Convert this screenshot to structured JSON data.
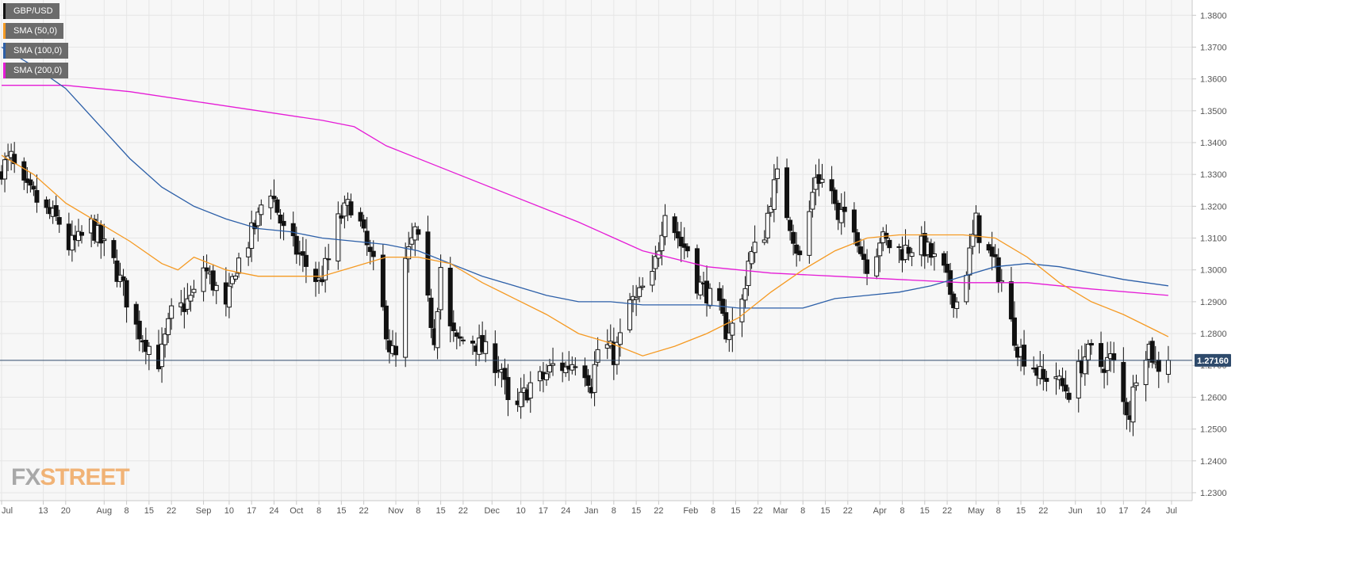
{
  "legend": [
    {
      "label": "GBP/USD",
      "color": "#111111"
    },
    {
      "label": "SMA (50,0)",
      "color": "#f59a23"
    },
    {
      "label": "SMA (100,0)",
      "color": "#2c5fa8"
    },
    {
      "label": "SMA (200,0)",
      "color": "#e51bd6"
    }
  ],
  "logo": {
    "part1": "FX",
    "part2": "STREET"
  },
  "colors": {
    "background": "#f7f7f7",
    "grid": "#e6e6e6",
    "candle_up": "#ffffff",
    "candle_down": "#111111",
    "price_line": "#2e4a6b",
    "price_badge": "#2e4a6b"
  },
  "chart_data": {
    "type": "candlestick",
    "instrument": "GBP/USD",
    "current_price": 1.2716,
    "current_price_label": "1.27160",
    "y_ticks": [
      1.38,
      1.37,
      1.36,
      1.35,
      1.34,
      1.33,
      1.32,
      1.31,
      1.3,
      1.29,
      1.28,
      1.27,
      1.26,
      1.25,
      1.24,
      1.23
    ],
    "y_tick_labels": [
      "1.3800",
      "1.3700",
      "1.3600",
      "1.3500",
      "1.3400",
      "1.3300",
      "1.3200",
      "1.3100",
      "1.3000",
      "1.2900",
      "1.2800",
      "1.2700",
      "1.2600",
      "1.2500",
      "1.2400",
      "1.2300"
    ],
    "ylim": [
      1.2275,
      1.3848
    ],
    "x_labels": [
      "Jul",
      "13",
      "20",
      "Aug",
      "8",
      "15",
      "22",
      "Sep",
      "10",
      "17",
      "24",
      "Oct",
      "8",
      "15",
      "22",
      "Nov",
      "8",
      "15",
      "22",
      "Dec",
      "10",
      "17",
      "24",
      "Jan",
      "8",
      "15",
      "22",
      "Feb",
      "8",
      "15",
      "22",
      "Mar",
      "8",
      "15",
      "22",
      "Apr",
      "8",
      "15",
      "22",
      "May",
      "8",
      "15",
      "22",
      "Jun",
      "10",
      "17",
      "24",
      "Jul"
    ],
    "x_label_days": [
      0,
      13,
      20,
      32,
      39,
      46,
      53,
      63,
      71,
      78,
      85,
      92,
      99,
      106,
      113,
      123,
      130,
      137,
      144,
      153,
      162,
      169,
      176,
      184,
      191,
      198,
      205,
      215,
      222,
      229,
      236,
      243,
      250,
      257,
      264,
      274,
      281,
      288,
      295,
      304,
      311,
      318,
      325,
      335,
      343,
      350,
      357,
      365
    ],
    "day_range": [
      0,
      366
    ],
    "keypoints": [
      [
        0,
        1.332
      ],
      [
        3,
        1.335
      ],
      [
        6,
        1.326
      ],
      [
        10,
        1.323
      ],
      [
        14,
        1.318
      ],
      [
        18,
        1.315
      ],
      [
        20,
        1.307
      ],
      [
        24,
        1.309
      ],
      [
        28,
        1.314
      ],
      [
        32,
        1.307
      ],
      [
        35,
        1.302
      ],
      [
        38,
        1.294
      ],
      [
        42,
        1.282
      ],
      [
        46,
        1.276
      ],
      [
        48,
        1.269
      ],
      [
        50,
        1.274
      ],
      [
        53,
        1.286
      ],
      [
        56,
        1.288
      ],
      [
        60,
        1.292
      ],
      [
        63,
        1.301
      ],
      [
        67,
        1.294
      ],
      [
        70,
        1.287
      ],
      [
        73,
        1.301
      ],
      [
        77,
        1.309
      ],
      [
        80,
        1.316
      ],
      [
        83,
        1.329
      ],
      [
        85,
        1.322
      ],
      [
        88,
        1.312
      ],
      [
        92,
        1.306
      ],
      [
        96,
        1.3
      ],
      [
        99,
        1.296
      ],
      [
        102,
        1.303
      ],
      [
        104,
        1.313
      ],
      [
        106,
        1.317
      ],
      [
        110,
        1.322
      ],
      [
        113,
        1.31
      ],
      [
        116,
        1.301
      ],
      [
        119,
        1.287
      ],
      [
        121,
        1.276
      ],
      [
        123,
        1.272
      ],
      [
        125,
        1.298
      ],
      [
        127,
        1.305
      ],
      [
        129,
        1.312
      ],
      [
        131,
        1.304
      ],
      [
        133,
        1.289
      ],
      [
        135,
        1.279
      ],
      [
        137,
        1.301
      ],
      [
        139,
        1.283
      ],
      [
        142,
        1.277
      ],
      [
        146,
        1.279
      ],
      [
        150,
        1.275
      ],
      [
        153,
        1.272
      ],
      [
        156,
        1.269
      ],
      [
        159,
        1.251
      ],
      [
        162,
        1.259
      ],
      [
        165,
        1.264
      ],
      [
        169,
        1.266
      ],
      [
        173,
        1.271
      ],
      [
        176,
        1.269
      ],
      [
        179,
        1.272
      ],
      [
        182,
        1.269
      ],
      [
        184,
        1.264
      ],
      [
        186,
        1.275
      ],
      [
        188,
        1.277
      ],
      [
        191,
        1.273
      ],
      [
        194,
        1.281
      ],
      [
        196,
        1.29
      ],
      [
        198,
        1.29
      ],
      [
        200,
        1.294
      ],
      [
        203,
        1.297
      ],
      [
        205,
        1.308
      ],
      [
        207,
        1.32
      ],
      [
        210,
        1.313
      ],
      [
        212,
        1.308
      ],
      [
        215,
        1.306
      ],
      [
        217,
        1.296
      ],
      [
        220,
        1.293
      ],
      [
        222,
        1.289
      ],
      [
        224,
        1.287
      ],
      [
        226,
        1.281
      ],
      [
        229,
        1.283
      ],
      [
        231,
        1.29
      ],
      [
        233,
        1.303
      ],
      [
        236,
        1.308
      ],
      [
        238,
        1.312
      ],
      [
        240,
        1.323
      ],
      [
        242,
        1.329
      ],
      [
        244,
        1.321
      ],
      [
        246,
        1.315
      ],
      [
        248,
        1.307
      ],
      [
        250,
        1.3
      ],
      [
        252,
        1.318
      ],
      [
        254,
        1.33
      ],
      [
        256,
        1.328
      ],
      [
        259,
        1.325
      ],
      [
        261,
        1.314
      ],
      [
        264,
        1.32
      ],
      [
        266,
        1.315
      ],
      [
        268,
        1.306
      ],
      [
        271,
        1.3
      ],
      [
        274,
        1.31
      ],
      [
        278,
        1.307
      ],
      [
        281,
        1.306
      ],
      [
        285,
        1.308
      ],
      [
        288,
        1.307
      ],
      [
        291,
        1.303
      ],
      [
        294,
        1.299
      ],
      [
        296,
        1.293
      ],
      [
        298,
        1.29
      ],
      [
        300,
        1.296
      ],
      [
        302,
        1.305
      ],
      [
        304,
        1.315
      ],
      [
        306,
        1.308
      ],
      [
        308,
        1.305
      ],
      [
        311,
        1.299
      ],
      [
        313,
        1.294
      ],
      [
        315,
        1.283
      ],
      [
        317,
        1.276
      ],
      [
        319,
        1.273
      ],
      [
        322,
        1.27
      ],
      [
        325,
        1.265
      ],
      [
        328,
        1.27
      ],
      [
        330,
        1.264
      ],
      [
        333,
        1.262
      ],
      [
        335,
        1.266
      ],
      [
        338,
        1.273
      ],
      [
        340,
        1.274
      ],
      [
        343,
        1.27
      ],
      [
        346,
        1.272
      ],
      [
        348,
        1.268
      ],
      [
        350,
        1.258
      ],
      [
        352,
        1.255
      ],
      [
        354,
        1.268
      ],
      [
        356,
        1.274
      ],
      [
        358,
        1.276
      ],
      [
        360,
        1.27
      ],
      [
        362,
        1.27
      ],
      [
        364,
        1.2716
      ]
    ],
    "sma50": [
      [
        0,
        1.336
      ],
      [
        10,
        1.33
      ],
      [
        20,
        1.321
      ],
      [
        30,
        1.315
      ],
      [
        40,
        1.309
      ],
      [
        50,
        1.302
      ],
      [
        55,
        1.3
      ],
      [
        60,
        1.304
      ],
      [
        70,
        1.3
      ],
      [
        80,
        1.298
      ],
      [
        90,
        1.298
      ],
      [
        100,
        1.298
      ],
      [
        110,
        1.301
      ],
      [
        120,
        1.304
      ],
      [
        130,
        1.304
      ],
      [
        140,
        1.302
      ],
      [
        150,
        1.296
      ],
      [
        160,
        1.291
      ],
      [
        170,
        1.286
      ],
      [
        180,
        1.28
      ],
      [
        190,
        1.277
      ],
      [
        200,
        1.273
      ],
      [
        210,
        1.276
      ],
      [
        220,
        1.28
      ],
      [
        230,
        1.285
      ],
      [
        240,
        1.293
      ],
      [
        250,
        1.3
      ],
      [
        260,
        1.306
      ],
      [
        270,
        1.31
      ],
      [
        280,
        1.311
      ],
      [
        290,
        1.311
      ],
      [
        300,
        1.311
      ],
      [
        310,
        1.31
      ],
      [
        320,
        1.304
      ],
      [
        330,
        1.296
      ],
      [
        340,
        1.29
      ],
      [
        350,
        1.286
      ],
      [
        360,
        1.281
      ],
      [
        364,
        1.279
      ]
    ],
    "sma100": [
      [
        0,
        1.37
      ],
      [
        10,
        1.364
      ],
      [
        20,
        1.357
      ],
      [
        30,
        1.346
      ],
      [
        40,
        1.335
      ],
      [
        50,
        1.326
      ],
      [
        60,
        1.32
      ],
      [
        70,
        1.316
      ],
      [
        80,
        1.313
      ],
      [
        90,
        1.312
      ],
      [
        100,
        1.31
      ],
      [
        110,
        1.309
      ],
      [
        120,
        1.308
      ],
      [
        130,
        1.306
      ],
      [
        140,
        1.302
      ],
      [
        150,
        1.298
      ],
      [
        160,
        1.295
      ],
      [
        170,
        1.292
      ],
      [
        180,
        1.29
      ],
      [
        190,
        1.29
      ],
      [
        200,
        1.289
      ],
      [
        210,
        1.289
      ],
      [
        220,
        1.289
      ],
      [
        230,
        1.288
      ],
      [
        240,
        1.288
      ],
      [
        250,
        1.288
      ],
      [
        260,
        1.291
      ],
      [
        270,
        1.292
      ],
      [
        280,
        1.293
      ],
      [
        290,
        1.295
      ],
      [
        300,
        1.298
      ],
      [
        310,
        1.301
      ],
      [
        320,
        1.302
      ],
      [
        330,
        1.301
      ],
      [
        340,
        1.299
      ],
      [
        350,
        1.297
      ],
      [
        364,
        1.295
      ]
    ],
    "sma200": [
      [
        0,
        1.358
      ],
      [
        20,
        1.358
      ],
      [
        40,
        1.356
      ],
      [
        60,
        1.353
      ],
      [
        80,
        1.35
      ],
      [
        100,
        1.347
      ],
      [
        110,
        1.345
      ],
      [
        120,
        1.339
      ],
      [
        140,
        1.331
      ],
      [
        160,
        1.323
      ],
      [
        180,
        1.315
      ],
      [
        200,
        1.306
      ],
      [
        220,
        1.301
      ],
      [
        240,
        1.299
      ],
      [
        260,
        1.298
      ],
      [
        280,
        1.297
      ],
      [
        300,
        1.296
      ],
      [
        320,
        1.296
      ],
      [
        340,
        1.294
      ],
      [
        364,
        1.292
      ]
    ]
  }
}
